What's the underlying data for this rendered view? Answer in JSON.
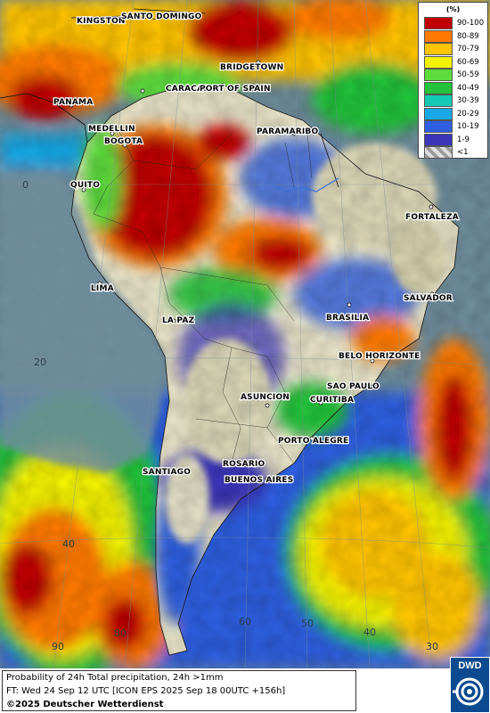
{
  "legend": {
    "unit": "(%)",
    "classes": [
      {
        "label": "90-100",
        "color": "#c00000"
      },
      {
        "label": "80-89",
        "color": "#ff7a00"
      },
      {
        "label": "70-79",
        "color": "#ffc400"
      },
      {
        "label": "60-69",
        "color": "#f2f200"
      },
      {
        "label": "50-59",
        "color": "#5ddc3c"
      },
      {
        "label": "40-49",
        "color": "#23c23a"
      },
      {
        "label": "30-39",
        "color": "#14c9b4"
      },
      {
        "label": "20-29",
        "color": "#18a8e6"
      },
      {
        "label": "10-19",
        "color": "#2f5fe0"
      },
      {
        "label": "1-9",
        "color": "#3b35b8"
      },
      {
        "label": "<1",
        "color": "#bdbdbd"
      }
    ]
  },
  "cities": [
    {
      "name": "KINGSTON"
    },
    {
      "name": "SANTO DOMINGO"
    },
    {
      "name": "BRIDGETOWN"
    },
    {
      "name": "CARACAS"
    },
    {
      "name": "PORT OF SPAIN"
    },
    {
      "name": "PANAMA"
    },
    {
      "name": "MEDELLIN"
    },
    {
      "name": "BOGOTA"
    },
    {
      "name": "PARAMARIBO"
    },
    {
      "name": "QUITO"
    },
    {
      "name": "FORTALEZA"
    },
    {
      "name": "LIMA"
    },
    {
      "name": "SALVADOR"
    },
    {
      "name": "LA PAZ"
    },
    {
      "name": "BRASILIA"
    },
    {
      "name": "BELO HORIZONTE"
    },
    {
      "name": "SAO PAULO"
    },
    {
      "name": "ASUNCION"
    },
    {
      "name": "CURITIBA"
    },
    {
      "name": "PORTO ALEGRE"
    },
    {
      "name": "ROSARIO"
    },
    {
      "name": "BUENOS AIRES"
    },
    {
      "name": "SANTIAGO"
    }
  ],
  "grid_labels": {
    "lat_0": "0",
    "lat_20": "20",
    "lat_40": "40",
    "lon_90": "90",
    "lon_80": "80",
    "lon_60": "60",
    "lon_50": "50",
    "lon_40": "40",
    "lon_30": "30"
  },
  "footer": {
    "line1": "Probability of 24h Total precipitation, 24h >1mm",
    "line2": "FT: Wed 24 Sep 12 UTC [ICON EPS 2025 Sep 18 00UTC +156h]",
    "line3": "©2025 Deutscher Wetterdienst",
    "logo_text": "DWD"
  }
}
